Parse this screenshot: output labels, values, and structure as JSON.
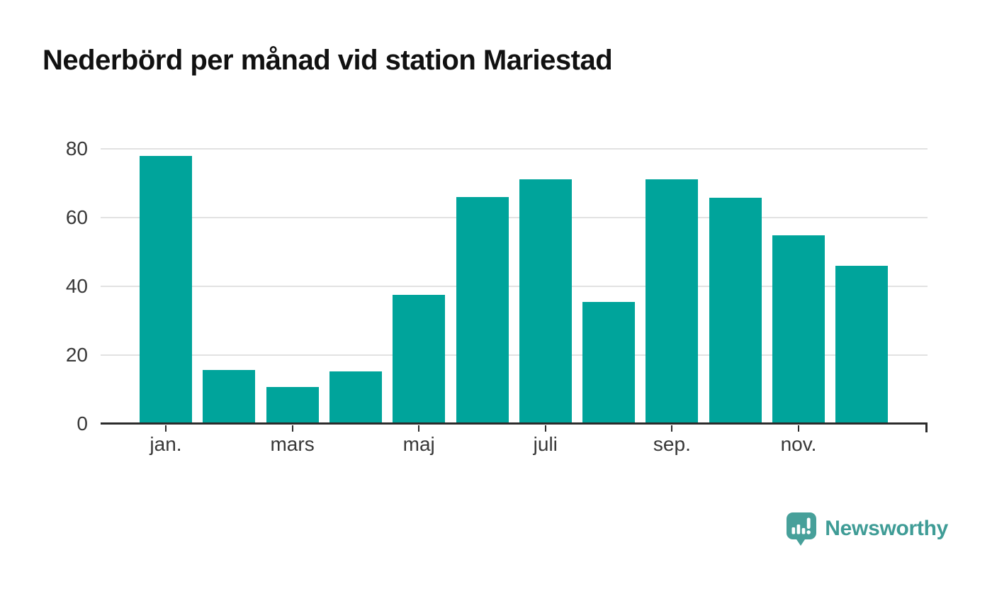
{
  "page": {
    "background_color": "#ffffff"
  },
  "title": "Nederbörd per månad vid station Mariestad",
  "chart_data": {
    "type": "bar",
    "title": "Nederbörd per månad vid station Mariestad",
    "values": [
      77.7,
      15.3,
      10.4,
      14.8,
      37.1,
      65.7,
      70.8,
      35.2,
      70.8,
      65.5,
      54.6,
      45.7
    ],
    "bar_count": 12,
    "x_ticks": [
      {
        "bar_index": 0,
        "label": "jan."
      },
      {
        "bar_index": 2,
        "label": "mars"
      },
      {
        "bar_index": 4,
        "label": "maj"
      },
      {
        "bar_index": 6,
        "label": "juli"
      },
      {
        "bar_index": 8,
        "label": "sep."
      },
      {
        "bar_index": 10,
        "label": "nov."
      }
    ],
    "y_ticks": [
      0,
      20,
      40,
      60,
      80
    ],
    "ylim": [
      0,
      80
    ],
    "grid": "horizontal",
    "legend": "none",
    "bar_color": "#00a49b",
    "gridline_color": "#e2e2e2",
    "axis_color": "#2b2b2b",
    "tick_label_color": "#383838"
  },
  "branding": {
    "name": "Newsworthy",
    "icon": "newsworthy-speech-bubble-bar-chart-icon",
    "icon_color": "#47a09a",
    "icon_glyph_color": "#ffffff",
    "text_color": "#3f9c96"
  }
}
